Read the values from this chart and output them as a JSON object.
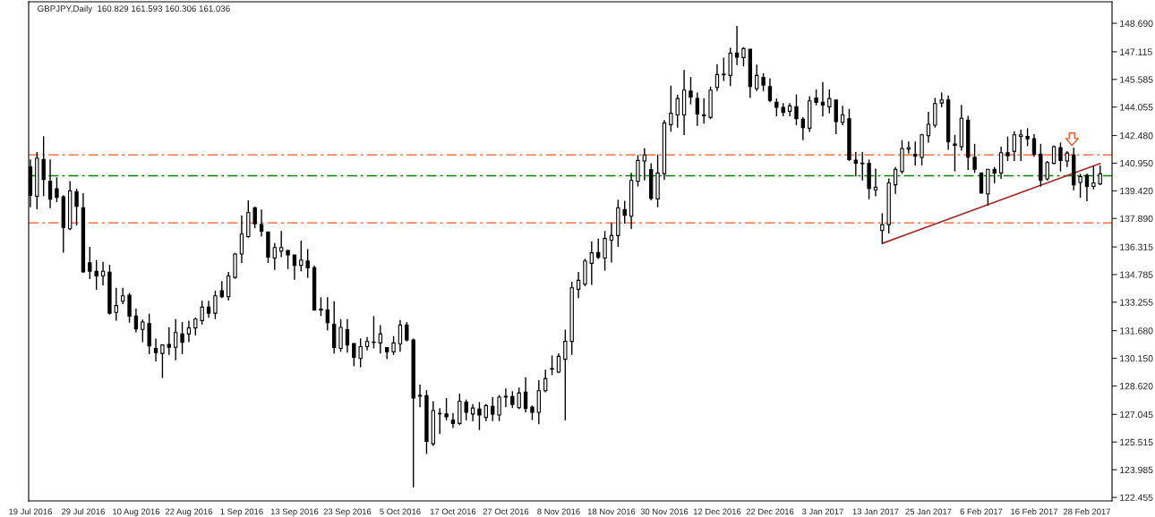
{
  "chart_data": {
    "type": "candlestick",
    "title": "GBPJPY,Daily  160.829 161.593 160.306 161.036",
    "categories": [
      "19 Jul 2016",
      null,
      null,
      null,
      null,
      null,
      null,
      null,
      "29 Jul 2016",
      null,
      null,
      null,
      null,
      null,
      null,
      null,
      "10 Aug 2016",
      null,
      null,
      null,
      null,
      null,
      null,
      null,
      "22 Aug 2016",
      null,
      null,
      null,
      null,
      null,
      null,
      null,
      "1 Sep 2016",
      null,
      null,
      null,
      null,
      null,
      null,
      null,
      "13 Sep 2016",
      null,
      null,
      null,
      null,
      null,
      null,
      null,
      "23 Sep 2016",
      null,
      null,
      null,
      null,
      null,
      null,
      null,
      "5 Oct 2016",
      null,
      null,
      null,
      null,
      null,
      null,
      null,
      "17 Oct 2016",
      null,
      null,
      null,
      null,
      null,
      null,
      null,
      "27 Oct 2016",
      null,
      null,
      null,
      null,
      null,
      null,
      null,
      "8 Nov 2016",
      null,
      null,
      null,
      null,
      null,
      null,
      null,
      "18 Nov 2016",
      null,
      null,
      null,
      null,
      null,
      null,
      null,
      "30 Nov 2016",
      null,
      null,
      null,
      null,
      null,
      null,
      null,
      "12 Dec 2016",
      null,
      null,
      null,
      null,
      null,
      null,
      null,
      "22 Dec 2016",
      null,
      null,
      null,
      null,
      null,
      null,
      null,
      "3 Jan 2017",
      null,
      null,
      null,
      null,
      null,
      null,
      null,
      "13 Jan 2017",
      null,
      null,
      null,
      null,
      null,
      null,
      null,
      "25 Jan 2017",
      null,
      null,
      null,
      null,
      null,
      null,
      null,
      "6 Feb 2017",
      null,
      null,
      null,
      null,
      null,
      null,
      null,
      "16 Feb 2017",
      null,
      null,
      null,
      null,
      null,
      null,
      null,
      "28 Feb 2017",
      null,
      null
    ],
    "ohlc": [
      [
        140.74,
        141.15,
        138.51,
        139.17
      ],
      [
        139.12,
        141.56,
        138.4,
        141.23
      ],
      [
        141.15,
        142.44,
        139.12,
        140.05
      ],
      [
        139.95,
        141.15,
        138.46,
        138.96
      ],
      [
        139.53,
        140.16,
        138.79,
        139.06
      ],
      [
        139.09,
        139.17,
        135.99,
        137.4
      ],
      [
        137.32,
        139.95,
        137.24,
        139.42
      ],
      [
        139.37,
        139.53,
        137.5,
        138.56
      ],
      [
        138.48,
        139.29,
        134.9,
        134.93
      ],
      [
        135.43,
        136.32,
        134.53,
        134.97
      ],
      [
        134.97,
        135.59,
        133.94,
        134.71
      ],
      [
        134.71,
        135.49,
        134.19,
        134.97
      ],
      [
        134.92,
        135.33,
        132.57,
        132.65
      ],
      [
        132.69,
        134.05,
        132.24,
        133.07
      ],
      [
        133.31,
        134.05,
        133.15,
        133.61
      ],
      [
        133.64,
        133.77,
        132.12,
        132.49
      ],
      [
        132.49,
        132.9,
        131.58,
        131.78
      ],
      [
        131.75,
        132.29,
        131.04,
        132.16
      ],
      [
        132.07,
        132.62,
        130.38,
        130.84
      ],
      [
        130.7,
        131.25,
        129.98,
        130.47
      ],
      [
        130.42,
        130.89,
        129.06,
        130.89
      ],
      [
        130.92,
        131.86,
        130.34,
        130.76
      ],
      [
        130.76,
        132.32,
        130.04,
        131.58
      ],
      [
        131.5,
        132.16,
        130.38,
        131.04
      ],
      [
        131.5,
        132.24,
        131.04,
        131.83
      ],
      [
        131.83,
        132.41,
        131.42,
        132.32
      ],
      [
        132.24,
        133.34,
        132.02,
        132.98
      ],
      [
        132.98,
        133.34,
        132.39,
        132.65
      ],
      [
        132.65,
        133.89,
        132.32,
        133.61
      ],
      [
        133.89,
        134.43,
        133.48,
        133.56
      ],
      [
        133.56,
        134.93,
        133.35,
        134.71
      ],
      [
        134.63,
        135.98,
        134.55,
        135.92
      ],
      [
        135.92,
        138.06,
        135.43,
        137.02
      ],
      [
        136.89,
        138.89,
        136.83,
        138.21
      ],
      [
        138.48,
        138.54,
        137.35,
        137.6
      ],
      [
        137.55,
        138.38,
        136.89,
        137.19
      ],
      [
        137.14,
        137.14,
        135.43,
        135.75
      ],
      [
        135.7,
        136.53,
        135.04,
        136.28
      ],
      [
        136.08,
        137.19,
        135.75,
        136.28
      ],
      [
        136.12,
        136.15,
        135.09,
        135.87
      ],
      [
        135.87,
        135.87,
        134.5,
        135.29
      ],
      [
        135.29,
        136.66,
        134.96,
        135.59
      ],
      [
        135.54,
        136.2,
        134.6,
        135.16
      ],
      [
        135.16,
        135.29,
        132.82,
        132.82
      ],
      [
        132.87,
        133.53,
        132.49,
        132.82
      ],
      [
        132.82,
        133.53,
        131.69,
        132.12
      ],
      [
        132.03,
        133.31,
        130.42,
        130.75
      ],
      [
        130.7,
        132.32,
        130.51,
        131.86
      ],
      [
        131.74,
        132.32,
        130.47,
        130.89
      ],
      [
        130.97,
        130.97,
        129.71,
        130.21
      ],
      [
        130.14,
        131.25,
        129.65,
        130.8
      ],
      [
        130.8,
        131.33,
        130.59,
        131.08
      ],
      [
        131.05,
        132.49,
        130.7,
        131.03
      ],
      [
        131.0,
        131.99,
        130.42,
        131.5
      ],
      [
        130.75,
        130.75,
        130.1,
        130.51
      ],
      [
        130.51,
        131.38,
        130.34,
        131.0
      ],
      [
        130.95,
        132.27,
        130.51,
        131.99
      ],
      [
        131.99,
        132.16,
        131.08,
        131.17
      ],
      [
        131.17,
        131.25,
        123.0,
        127.95
      ],
      [
        128.06,
        128.69,
        127.45,
        128.1
      ],
      [
        128.08,
        128.39,
        124.86,
        125.56
      ],
      [
        125.42,
        127.78,
        125.31,
        127.26
      ],
      [
        127.08,
        127.4,
        125.97,
        127.1
      ],
      [
        127.07,
        127.95,
        126.71,
        126.91
      ],
      [
        126.74,
        127.12,
        126.3,
        126.55
      ],
      [
        126.55,
        128.2,
        126.46,
        127.78
      ],
      [
        127.73,
        127.87,
        126.71,
        127.16
      ],
      [
        127.07,
        127.62,
        126.66,
        127.4
      ],
      [
        127.34,
        127.73,
        126.18,
        127.01
      ],
      [
        126.88,
        127.62,
        126.68,
        127.54
      ],
      [
        127.49,
        128.0,
        126.68,
        127.07
      ],
      [
        127.01,
        128.12,
        126.68,
        128.0
      ],
      [
        128.01,
        128.48,
        127.45,
        128.05
      ],
      [
        128.03,
        128.33,
        127.4,
        127.59
      ],
      [
        127.42,
        128.53,
        127.34,
        128.23
      ],
      [
        128.28,
        129.1,
        127.16,
        127.37
      ],
      [
        127.45,
        127.54,
        126.74,
        127.16
      ],
      [
        127.16,
        128.94,
        126.5,
        128.36
      ],
      [
        128.36,
        129.52,
        128.28,
        129.02
      ],
      [
        129.55,
        130.31,
        129.22,
        129.58
      ],
      [
        129.39,
        130.43,
        129.32,
        130.26
      ],
      [
        130.1,
        131.74,
        126.71,
        131.09
      ],
      [
        131.09,
        134.39,
        130.34,
        134.05
      ],
      [
        133.97,
        134.93,
        133.48,
        134.47
      ],
      [
        134.25,
        135.66,
        134.14,
        135.54
      ],
      [
        135.41,
        136.61,
        134.22,
        135.99
      ],
      [
        136.0,
        136.78,
        135.65,
        135.74
      ],
      [
        135.7,
        137.19,
        135.0,
        136.78
      ],
      [
        136.69,
        137.64,
        135.45,
        136.94
      ],
      [
        136.94,
        138.92,
        136.32,
        138.48
      ],
      [
        138.38,
        138.87,
        137.6,
        138.06
      ],
      [
        138.01,
        140.41,
        137.31,
        139.99
      ],
      [
        139.94,
        141.4,
        139.66,
        141.1
      ],
      [
        141.07,
        141.78,
        139.99,
        141.4
      ],
      [
        140.6,
        140.94,
        138.89,
        139.0
      ],
      [
        138.97,
        141.43,
        138.51,
        140.41
      ],
      [
        140.37,
        143.34,
        140.03,
        143.18
      ],
      [
        143.08,
        145.24,
        142.69,
        143.71
      ],
      [
        143.62,
        144.73,
        142.91,
        144.53
      ],
      [
        143.62,
        146.1,
        142.5,
        144.99
      ],
      [
        144.94,
        145.72,
        144.2,
        144.61
      ],
      [
        144.53,
        144.86,
        143.01,
        143.67
      ],
      [
        143.62,
        144.53,
        143.13,
        143.57
      ],
      [
        143.49,
        145.19,
        143.38,
        144.99
      ],
      [
        145.14,
        146.43,
        144.94,
        145.85
      ],
      [
        145.84,
        146.79,
        145.49,
        145.87
      ],
      [
        145.8,
        147.34,
        145.22,
        147.04
      ],
      [
        147.04,
        148.54,
        146.38,
        146.81
      ],
      [
        146.79,
        147.37,
        146.3,
        147.29
      ],
      [
        147.25,
        147.25,
        144.56,
        145.19
      ],
      [
        145.08,
        146.4,
        144.94,
        145.8
      ],
      [
        145.69,
        145.93,
        144.94,
        145.27
      ],
      [
        145.19,
        145.65,
        144.32,
        144.42
      ],
      [
        144.32,
        144.53,
        143.54,
        144.04
      ],
      [
        144.04,
        144.28,
        143.54,
        143.76
      ],
      [
        143.82,
        144.28,
        143.54,
        144.12
      ],
      [
        144.07,
        144.75,
        143.05,
        143.41
      ],
      [
        143.38,
        143.49,
        142.22,
        142.91
      ],
      [
        142.88,
        144.66,
        142.68,
        144.4
      ],
      [
        144.56,
        145.03,
        144.15,
        144.32
      ],
      [
        144.32,
        145.44,
        143.54,
        144.17
      ],
      [
        144.07,
        145.03,
        143.71,
        144.53
      ],
      [
        144.45,
        144.45,
        142.55,
        143.25
      ],
      [
        143.21,
        144.12,
        143.05,
        143.62
      ],
      [
        143.41,
        143.95,
        141.07,
        141.15
      ],
      [
        141.12,
        141.56,
        140.21,
        140.95
      ],
      [
        140.95,
        141.56,
        139.99,
        140.92
      ],
      [
        140.93,
        141.15,
        138.95,
        139.55
      ],
      [
        139.47,
        140.65,
        139.12,
        139.62
      ],
      [
        137.22,
        138.18,
        136.5,
        137.55
      ],
      [
        137.55,
        140.11,
        137.06,
        139.86
      ],
      [
        139.75,
        140.74,
        139.25,
        140.61
      ],
      [
        140.49,
        142.22,
        140.36,
        141.76
      ],
      [
        141.73,
        142.14,
        141.48,
        141.81
      ],
      [
        141.43,
        142.14,
        140.82,
        141.35
      ],
      [
        141.27,
        142.58,
        140.82,
        142.52
      ],
      [
        142.47,
        143.79,
        142.09,
        143.1
      ],
      [
        143.05,
        144.56,
        142.92,
        144.25
      ],
      [
        144.28,
        144.86,
        144.04,
        144.45
      ],
      [
        144.45,
        144.7,
        141.69,
        142.14
      ],
      [
        142.01,
        142.52,
        140.49,
        141.94
      ],
      [
        141.86,
        144.17,
        141.64,
        143.43
      ],
      [
        143.33,
        143.57,
        140.57,
        141.28
      ],
      [
        141.28,
        142.02,
        140.41,
        140.61
      ],
      [
        140.41,
        140.41,
        139.25,
        139.3
      ],
      [
        139.25,
        140.61,
        138.59,
        140.61
      ],
      [
        140.61,
        140.74,
        139.83,
        140.41
      ],
      [
        140.41,
        141.86,
        140.08,
        141.53
      ],
      [
        141.53,
        142.42,
        141.07,
        141.36
      ],
      [
        141.61,
        142.72,
        141.07,
        142.52
      ],
      [
        142.43,
        142.8,
        141.07,
        142.52
      ],
      [
        142.43,
        142.88,
        141.89,
        142.3
      ],
      [
        142.3,
        142.55,
        141.31,
        141.43
      ],
      [
        141.45,
        142.02,
        139.66,
        139.99
      ],
      [
        140.08,
        141.07,
        139.99,
        140.98
      ],
      [
        140.94,
        141.94,
        140.9,
        141.86
      ],
      [
        141.81,
        142.09,
        140.49,
        141.1
      ],
      [
        141.07,
        141.61,
        140.74,
        141.51
      ],
      [
        141.4,
        141.81,
        139.45,
        139.75
      ],
      [
        139.88,
        140.36,
        139.04,
        140.21
      ],
      [
        140.27,
        140.36,
        138.84,
        139.66
      ],
      [
        139.66,
        140.79,
        139.5,
        139.86
      ],
      [
        139.8,
        140.82,
        139.75,
        140.36
      ]
    ],
    "series": [
      {
        "type": "line",
        "color": "#a52a2a",
        "values": [
          null,
          null,
          null,
          null,
          null,
          null,
          null,
          null,
          null,
          null,
          null,
          null,
          null,
          null,
          null,
          null,
          null,
          null,
          null,
          null,
          null,
          null,
          null,
          null,
          null,
          null,
          null,
          null,
          null,
          null,
          null,
          null,
          null,
          null,
          null,
          null,
          null,
          null,
          null,
          null,
          null,
          null,
          null,
          null,
          null,
          null,
          null,
          null,
          null,
          null,
          null,
          null,
          null,
          null,
          null,
          null,
          null,
          null,
          null,
          null,
          null,
          null,
          null,
          null,
          null,
          null,
          null,
          null,
          null,
          null,
          null,
          null,
          null,
          null,
          null,
          null,
          null,
          null,
          null,
          null,
          null,
          null,
          null,
          null,
          null,
          null,
          null,
          null,
          null,
          null,
          null,
          null,
          null,
          null,
          null,
          null,
          null,
          null,
          null,
          null,
          null,
          null,
          null,
          null,
          null,
          null,
          null,
          null,
          null,
          null,
          null,
          null,
          null,
          null,
          null,
          null,
          null,
          null,
          null,
          null,
          null,
          null,
          null,
          null,
          null,
          null,
          null,
          null,
          null,
          136.51,
          null,
          null,
          null,
          null,
          null,
          null,
          null,
          null,
          null,
          null,
          null,
          null,
          null,
          null,
          null,
          null,
          null,
          null,
          null,
          null,
          null,
          null,
          null,
          null,
          null,
          null,
          null,
          null,
          null,
          null,
          null,
          null,
          140.93
        ]
      }
    ],
    "ref_lines": [
      {
        "axis": "y",
        "value": 141.41,
        "color": "#f05a28",
        "line_style": "dashed"
      },
      {
        "axis": "y",
        "value": 140.25,
        "color": "#008000",
        "line_style": "dashed"
      },
      {
        "axis": "y",
        "value": 137.65,
        "color": "#f05a28",
        "line_style": "dashed"
      }
    ],
    "ylim": [
      122.26,
      149.88
    ],
    "yticks": [
      {
        "value": 148.69,
        "label": "148.690"
      },
      147.115,
      145.585,
      144.055,
      {
        "value": 142.48,
        "label": "142.480"
      },
      {
        "value": 140.95,
        "label": "140.950"
      },
      {
        "value": 139.42,
        "label": "139.420"
      },
      {
        "value": 137.89,
        "label": "137.890"
      },
      136.315,
      134.785,
      133.255,
      {
        "value": 131.68,
        "label": "131.680"
      },
      {
        "value": 130.15,
        "label": "130.150"
      },
      {
        "value": 128.62,
        "label": "128.620"
      },
      127.045,
      125.515,
      123.985,
      122.455
    ]
  }
}
